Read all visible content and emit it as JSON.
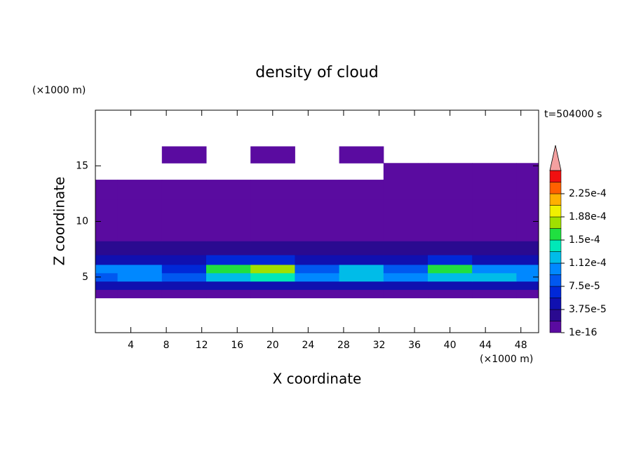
{
  "chart_data": {
    "type": "contour",
    "title": "density of cloud",
    "xlabel": "X coordinate",
    "ylabel": "Z coordinate",
    "x_unit": "(×1000 m)",
    "y_unit": "(×1000 m)",
    "annotation": "t=504000 s",
    "xlim": [
      0,
      50
    ],
    "ylim": [
      0,
      20
    ],
    "xticks": [
      4,
      8,
      12,
      16,
      20,
      24,
      28,
      32,
      36,
      40,
      44,
      48
    ],
    "yticks": [
      5,
      10,
      15
    ],
    "x": [
      0,
      5,
      10,
      15,
      20,
      25,
      30,
      35,
      40,
      45,
      50
    ],
    "y": [
      3.5,
      4.25,
      5,
      5.75,
      6.5,
      7.5,
      9,
      11,
      13,
      14.5,
      16
    ],
    "z": [
      [
        1e-05,
        1e-05,
        1e-05,
        1e-05,
        1e-05,
        1e-05,
        1e-05,
        1e-05,
        1e-05,
        1e-05,
        1e-05
      ],
      [
        4e-05,
        4e-05,
        4e-05,
        4e-05,
        4e-05,
        4e-05,
        4e-05,
        4e-05,
        4e-05,
        4e-05,
        4e-05
      ],
      [
        9e-05,
        0.00011,
        8e-05,
        0.00012,
        0.000135,
        0.0001,
        0.00012,
        0.0001,
        0.00013,
        0.00012,
        0.0001
      ],
      [
        0.00011,
        0.0001,
        7e-05,
        0.00015,
        0.00017,
        8e-05,
        0.00012,
        9e-05,
        0.00016,
        0.00011,
        0.0001
      ],
      [
        5e-05,
        5e-05,
        4e-05,
        6e-05,
        6e-05,
        4e-05,
        5e-05,
        4e-05,
        6e-05,
        5e-05,
        5e-05
      ],
      [
        2.5e-05,
        2.5e-05,
        2e-05,
        2.5e-05,
        2.5e-05,
        2e-05,
        2.5e-05,
        2e-05,
        2.5e-05,
        2.5e-05,
        2e-05
      ],
      [
        1e-05,
        1e-05,
        1e-05,
        1e-05,
        1e-05,
        1e-05,
        1e-05,
        1e-05,
        1e-05,
        1e-05,
        1e-05
      ],
      [
        5e-06,
        5e-06,
        5e-06,
        5e-06,
        5e-06,
        5e-06,
        5e-06,
        5e-06,
        5e-06,
        5e-06,
        5e-06
      ],
      [
        5e-06,
        5e-06,
        5e-06,
        5e-06,
        5e-06,
        5e-06,
        5e-06,
        5e-06,
        5e-06,
        5e-06,
        5e-06
      ],
      [
        null,
        null,
        null,
        null,
        null,
        null,
        null,
        5e-06,
        5e-06,
        5e-06,
        5e-06
      ],
      [
        null,
        null,
        5e-06,
        null,
        5e-06,
        null,
        5e-06,
        null,
        null,
        null,
        null
      ]
    ],
    "levels": [
      1e-16,
      1.875e-05,
      3.75e-05,
      5.625e-05,
      7.5e-05,
      9.375e-05,
      0.0001125,
      0.00013125,
      0.00015,
      0.00016875,
      0.0001875,
      0.00020625,
      0.000225,
      0.00024375,
      0.0002625
    ],
    "colors": [
      "#5a0ba0",
      "#2a0a90",
      "#1010b0",
      "#0028d8",
      "#0058f0",
      "#0088ff",
      "#00bce8",
      "#00e8b8",
      "#20e040",
      "#a0e000",
      "#f0f000",
      "#ffb000",
      "#ff6000",
      "#f01010"
    ],
    "extend_color": "#f4a0a0",
    "colorbar_ticks": [
      {
        "value": 1e-16,
        "label": "1e-16"
      },
      {
        "value": 3.75e-05,
        "label": "3.75e-5"
      },
      {
        "value": 7.5e-05,
        "label": "7.5e-5"
      },
      {
        "value": 0.0001125,
        "label": "1.12e-4"
      },
      {
        "value": 0.00015,
        "label": "1.5e-4"
      },
      {
        "value": 0.0001875,
        "label": "1.88e-4"
      },
      {
        "value": 0.000225,
        "label": "2.25e-4"
      }
    ]
  }
}
